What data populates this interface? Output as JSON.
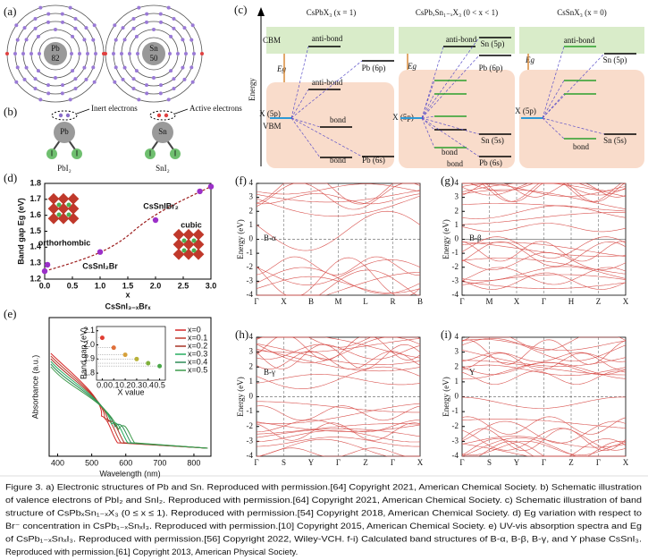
{
  "panels": {
    "a": {
      "label": "(a)",
      "atoms": [
        {
          "symbol": "Pb",
          "z": "82"
        },
        {
          "symbol": "Sn",
          "z": "50"
        }
      ]
    },
    "b": {
      "label": "(b)",
      "notes": [
        "Inert electrons",
        "Active electrons"
      ],
      "atoms": [
        "Pb",
        "Sn"
      ],
      "ligand": "I",
      "compounds": [
        "PbI₂",
        "SnI₂"
      ]
    },
    "c": {
      "label": "(c)",
      "axis": "Energy",
      "cbm": "CBM",
      "vbm": "VBM",
      "columns": [
        {
          "title": "CsPbX₃ (x = 1)",
          "texts": [
            "anti-bond",
            "anti-bond",
            "bond",
            "bond",
            "Pb (6p)",
            "Pb (6s)",
            "X (5p)",
            "Eg"
          ]
        },
        {
          "title": "CsPbₓSn₁₋ₓX₃ (0 < x < 1)",
          "texts": [
            "anti-bond",
            "Sn (5p)",
            "Pb (6p)",
            "Eg",
            "X (5p)",
            "Sn (5s)",
            "bond",
            "bond",
            "Pb (6s)"
          ]
        },
        {
          "title": "CsSnX₃ (x = 0)",
          "texts": [
            "anti-bond",
            "Sn (5p)",
            "Eg",
            "X (5p)",
            "bond",
            "Sn (5s)"
          ]
        }
      ]
    },
    "d": {
      "label": "(d)",
      "xlabel": "x",
      "formula": "CsSnI₃₋ₓBrₓ",
      "ylabel": "Band gap Eg (eV)",
      "xlim": [
        0,
        3
      ],
      "ylim": [
        1.2,
        1.8
      ],
      "xticks": [
        {
          "value": 0,
          "label": "0.0"
        },
        0.5,
        {
          "value": 1,
          "label": "1.0"
        },
        1.5,
        {
          "value": 2,
          "label": "2.0"
        },
        2.5,
        {
          "value": 3,
          "label": "3.0"
        }
      ],
      "yticks": [
        1.2,
        1.3,
        1.4,
        1.5,
        1.6,
        1.7,
        1.8
      ],
      "x": [
        0,
        0.05,
        1,
        2,
        2.8,
        3
      ],
      "y": [
        1.25,
        1.29,
        1.37,
        1.57,
        1.75,
        1.78
      ],
      "color": "#9b30c8",
      "annotations": [
        "orthorhombic",
        "CsSnI₂Br",
        "CsSnIBr₂",
        "cubic"
      ]
    },
    "e": {
      "label": "(e)",
      "xlabel": "Wavelength (nm)",
      "ylabel": "Absorbance (a.u.)",
      "xlim": [
        375,
        850
      ],
      "xticks": [
        400,
        500,
        600,
        700,
        800
      ],
      "legend": [
        {
          "name": "x=0",
          "color": "#d62728"
        },
        {
          "name": "x=0.1",
          "color": "#c0392b"
        },
        {
          "name": "x=0.2",
          "color": "#a93226"
        },
        {
          "name": "x=0.3",
          "color": "#27ae60"
        },
        {
          "name": "x=0.4",
          "color": "#2e8b57"
        },
        {
          "name": "x=0.5",
          "color": "#3c9a4a"
        }
      ],
      "inset": {
        "xlabel": "X value",
        "ylabel": "Band gap (eV)",
        "xlim": [
          -0.05,
          0.55
        ],
        "ylim": [
          1.75,
          2.13
        ],
        "xticks": [
          {
            "value": 0,
            "label": "0.0"
          },
          0.1,
          0.2,
          0.3,
          0.4,
          0.5
        ],
        "yticks": [
          1.8,
          1.9,
          {
            "value": 2,
            "label": "2.0"
          },
          2.1
        ],
        "x": [
          0,
          0.1,
          0.2,
          0.3,
          0.4,
          0.5
        ],
        "y": [
          2.05,
          1.98,
          1.93,
          1.9,
          1.87,
          1.85
        ],
        "colors": [
          "#e03c31",
          "#e0703a",
          "#d6a03a",
          "#b9b23a",
          "#7fb03a",
          "#4aa84a"
        ]
      }
    },
    "bands": [
      {
        "label": "(f)",
        "phase": "B-α",
        "kpoints": [
          "Γ",
          "X",
          "B",
          "M",
          "L",
          "R",
          "B"
        ],
        "dashed_zero": true
      },
      {
        "label": "(g)",
        "phase": "B-β",
        "kpoints": [
          "Γ",
          "M",
          "X",
          "Γ",
          "H",
          "Z",
          "X"
        ],
        "dashed_zero": false
      },
      {
        "label": "(h)",
        "phase": "B-γ",
        "kpoints": [
          "Γ",
          "S",
          "Y",
          "Γ",
          "Z",
          "Γ",
          "X"
        ],
        "dashed_zero": true
      },
      {
        "label": "(i)",
        "phase": "Y",
        "kpoints": [
          "Γ",
          "S",
          "Y",
          "Γ",
          "Z",
          "Γ",
          "X"
        ],
        "dashed_zero": true
      }
    ],
    "band_axis": {
      "ylabel": "Energy (eV)",
      "ylim": [
        -4,
        4
      ],
      "yticks": [
        4,
        3,
        2,
        1,
        0,
        -1,
        -2,
        -3,
        -4
      ]
    }
  },
  "caption": [
    "Figure 3. a) Electronic structures of Pb and Sn. Reproduced with permission.[64] Copyright 2021, American Chemical Society. b) Schematic illustration",
    "of valence electrons of PbI₂ and SnI₂. Reproduced with permission.[64] Copyright 2021, American Chemical Society. c) Schematic illustration of band",
    "structure of CsPbₓSn₁₋ₓX₃ (0 ≤ x ≤ 1). Reproduced with permission.[54] Copyright 2018, American Chemical Society. d) Eg variation with respect to",
    "Br⁻ concentration in CsPb₁₋ₓSnₓI₃. Reproduced with permission.[10] Copyright 2015, American Chemical Society. e) UV-vis absorption spectra and Eg",
    "of CsPb₁₋ₓSnₓI₃. Reproduced with permission.[56] Copyright 2022, Wiley-VCH. f-i) Calculated band structures of B-α, B-β, B-γ, and Y phase CsSnI₃.",
    "Reproduced with permission.[61] Copyright 2013, American Physical Society."
  ]
}
